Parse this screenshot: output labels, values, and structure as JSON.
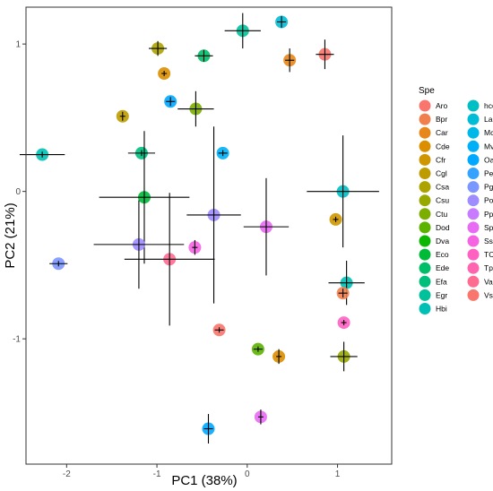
{
  "chart_data": {
    "type": "scatter",
    "xlabel": "PC1 (38%)",
    "ylabel": "PC2 (21%)",
    "xlim": [
      -2.45,
      1.6
    ],
    "ylim": [
      -1.85,
      1.25
    ],
    "x_ticks": [
      -2,
      -1,
      0,
      1
    ],
    "y_ticks": [
      -1,
      0,
      1
    ],
    "grid": false,
    "legend": {
      "title": "Spe",
      "placement": "right",
      "columns": 2,
      "entries": [
        {
          "label": "Aro",
          "color": "#F8766D"
        },
        {
          "label": "Bpr",
          "color": "#F17F4E"
        },
        {
          "label": "Car",
          "color": "#E7861B"
        },
        {
          "label": "Cde",
          "color": "#DB8E00"
        },
        {
          "label": "Cfr",
          "color": "#CE9600"
        },
        {
          "label": "Cgl",
          "color": "#BE9C00"
        },
        {
          "label": "Csa",
          "color": "#ACA300"
        },
        {
          "label": "Csu",
          "color": "#97A900"
        },
        {
          "label": "Ctu",
          "color": "#7CAE00"
        },
        {
          "label": "Dod",
          "color": "#5BB300"
        },
        {
          "label": "Dva",
          "color": "#0CB702"
        },
        {
          "label": "Eco",
          "color": "#00BA38"
        },
        {
          "label": "Ede",
          "color": "#00BE67"
        },
        {
          "label": "Efa",
          "color": "#00BF7D"
        },
        {
          "label": "Egr",
          "color": "#00C19A"
        },
        {
          "label": "Hbi",
          "color": "#00C0B5"
        },
        {
          "label": "hco",
          "color": "#00BFC4"
        },
        {
          "label": "Lal",
          "color": "#00BCD6"
        },
        {
          "label": "Mco",
          "color": "#00B8E7"
        },
        {
          "label": "Mve",
          "color": "#00B0F6"
        },
        {
          "label": "Oas",
          "color": "#00A9FF"
        },
        {
          "label": "Peu",
          "color": "#35A2FF"
        },
        {
          "label": "Pgu",
          "color": "#7C96FF"
        },
        {
          "label": "Pop",
          "color": "#9F8CFF"
        },
        {
          "label": "Ppt",
          "color": "#C77CFF"
        },
        {
          "label": "Spr",
          "color": "#E76BF3"
        },
        {
          "label": "Ssp",
          "color": "#F563E3"
        },
        {
          "label": "TCl",
          "color": "#FF61C3"
        },
        {
          "label": "Tpr",
          "color": "#FF64B0"
        },
        {
          "label": "Vam",
          "color": "#FF6C91"
        },
        {
          "label": "Vsa",
          "color": "#F8766D"
        }
      ]
    },
    "points": [
      {
        "x": 0.86,
        "y": 0.93,
        "color": "#F8766D",
        "xerr": 0.1,
        "yerr": 0.1
      },
      {
        "x": 0.47,
        "y": 0.89,
        "color": "#E7861B",
        "xerr": 0.05,
        "yerr": 0.08
      },
      {
        "x": -0.92,
        "y": 0.8,
        "color": "#DB8E00",
        "xerr": 0.0,
        "yerr": 0.0
      },
      {
        "x": -0.99,
        "y": 0.97,
        "color": "#ACA300",
        "xerr": 0.1,
        "yerr": 0.05
      },
      {
        "x": -1.38,
        "y": 0.51,
        "color": "#BE9C00",
        "xerr": 0.02,
        "yerr": 0.03
      },
      {
        "x": -0.57,
        "y": 0.56,
        "color": "#7CAE00",
        "xerr": 0.2,
        "yerr": 0.12
      },
      {
        "x": -0.48,
        "y": 0.92,
        "color": "#00BE67",
        "xerr": 0.1,
        "yerr": 0.04
      },
      {
        "x": -0.05,
        "y": 1.09,
        "color": "#00C19A",
        "xerr": 0.2,
        "yerr": 0.12
      },
      {
        "x": 0.38,
        "y": 1.15,
        "color": "#00BCD6",
        "xerr": 0.05,
        "yerr": 0.04
      },
      {
        "x": -0.85,
        "y": 0.61,
        "color": "#00A9FF",
        "xerr": 0.05,
        "yerr": 0.03
      },
      {
        "x": -2.27,
        "y": 0.25,
        "color": "#00C0B5",
        "xerr": 0.25,
        "yerr": 0.02
      },
      {
        "x": -1.17,
        "y": 0.26,
        "color": "#00BF7D",
        "xerr": 0.15,
        "yerr": 0.02
      },
      {
        "x": -0.27,
        "y": 0.26,
        "color": "#00B0F6",
        "xerr": 0.05,
        "yerr": 0.02
      },
      {
        "x": -1.14,
        "y": -0.04,
        "color": "#00BA38",
        "xerr": 0.5,
        "yerr": 0.45
      },
      {
        "x": 1.06,
        "y": 0.0,
        "color": "#00BFC4",
        "xerr": 0.4,
        "yerr": 0.38
      },
      {
        "x": -0.37,
        "y": -0.16,
        "color": "#9F8CFF",
        "xerr": 0.3,
        "yerr": 0.6
      },
      {
        "x": -1.2,
        "y": -0.36,
        "color": "#9F8CFF",
        "xerr": 0.5,
        "yerr": 0.3
      },
      {
        "x": 0.21,
        "y": -0.24,
        "color": "#E76BF3",
        "xerr": 0.25,
        "yerr": 0.33
      },
      {
        "x": -0.58,
        "y": -0.38,
        "color": "#F563E3",
        "xerr": 0.0,
        "yerr": 0.05
      },
      {
        "x": -0.86,
        "y": -0.46,
        "color": "#FF6C91",
        "xerr": 0.5,
        "yerr": 0.45
      },
      {
        "x": 0.98,
        "y": -0.19,
        "color": "#CE9600",
        "xerr": 0.0,
        "yerr": 0.0
      },
      {
        "x": -2.09,
        "y": -0.49,
        "color": "#7C96FF",
        "xerr": 0.1,
        "yerr": 0.0
      },
      {
        "x": 1.1,
        "y": -0.62,
        "color": "#00C0B5",
        "xerr": 0.2,
        "yerr": 0.15
      },
      {
        "x": 1.06,
        "y": -0.69,
        "color": "#F17F4E",
        "xerr": 0.05,
        "yerr": 0.03
      },
      {
        "x": 1.07,
        "y": -0.89,
        "color": "#FF61C3",
        "xerr": 0.0,
        "yerr": 0.0
      },
      {
        "x": -0.31,
        "y": -0.94,
        "color": "#F8766D",
        "xerr": 0.05,
        "yerr": 0.0
      },
      {
        "x": 0.12,
        "y": -1.07,
        "color": "#5BB300",
        "xerr": 0.05,
        "yerr": 0.0
      },
      {
        "x": 0.35,
        "y": -1.12,
        "color": "#DB8E00",
        "xerr": 0.0,
        "yerr": 0.05
      },
      {
        "x": 1.07,
        "y": -1.12,
        "color": "#97A900",
        "xerr": 0.15,
        "yerr": 0.1
      },
      {
        "x": 0.15,
        "y": -1.53,
        "color": "#E76BF3",
        "xerr": 0.0,
        "yerr": 0.05
      },
      {
        "x": -0.43,
        "y": -1.61,
        "color": "#00A9FF",
        "xerr": 0.05,
        "yerr": 0.1
      }
    ]
  }
}
